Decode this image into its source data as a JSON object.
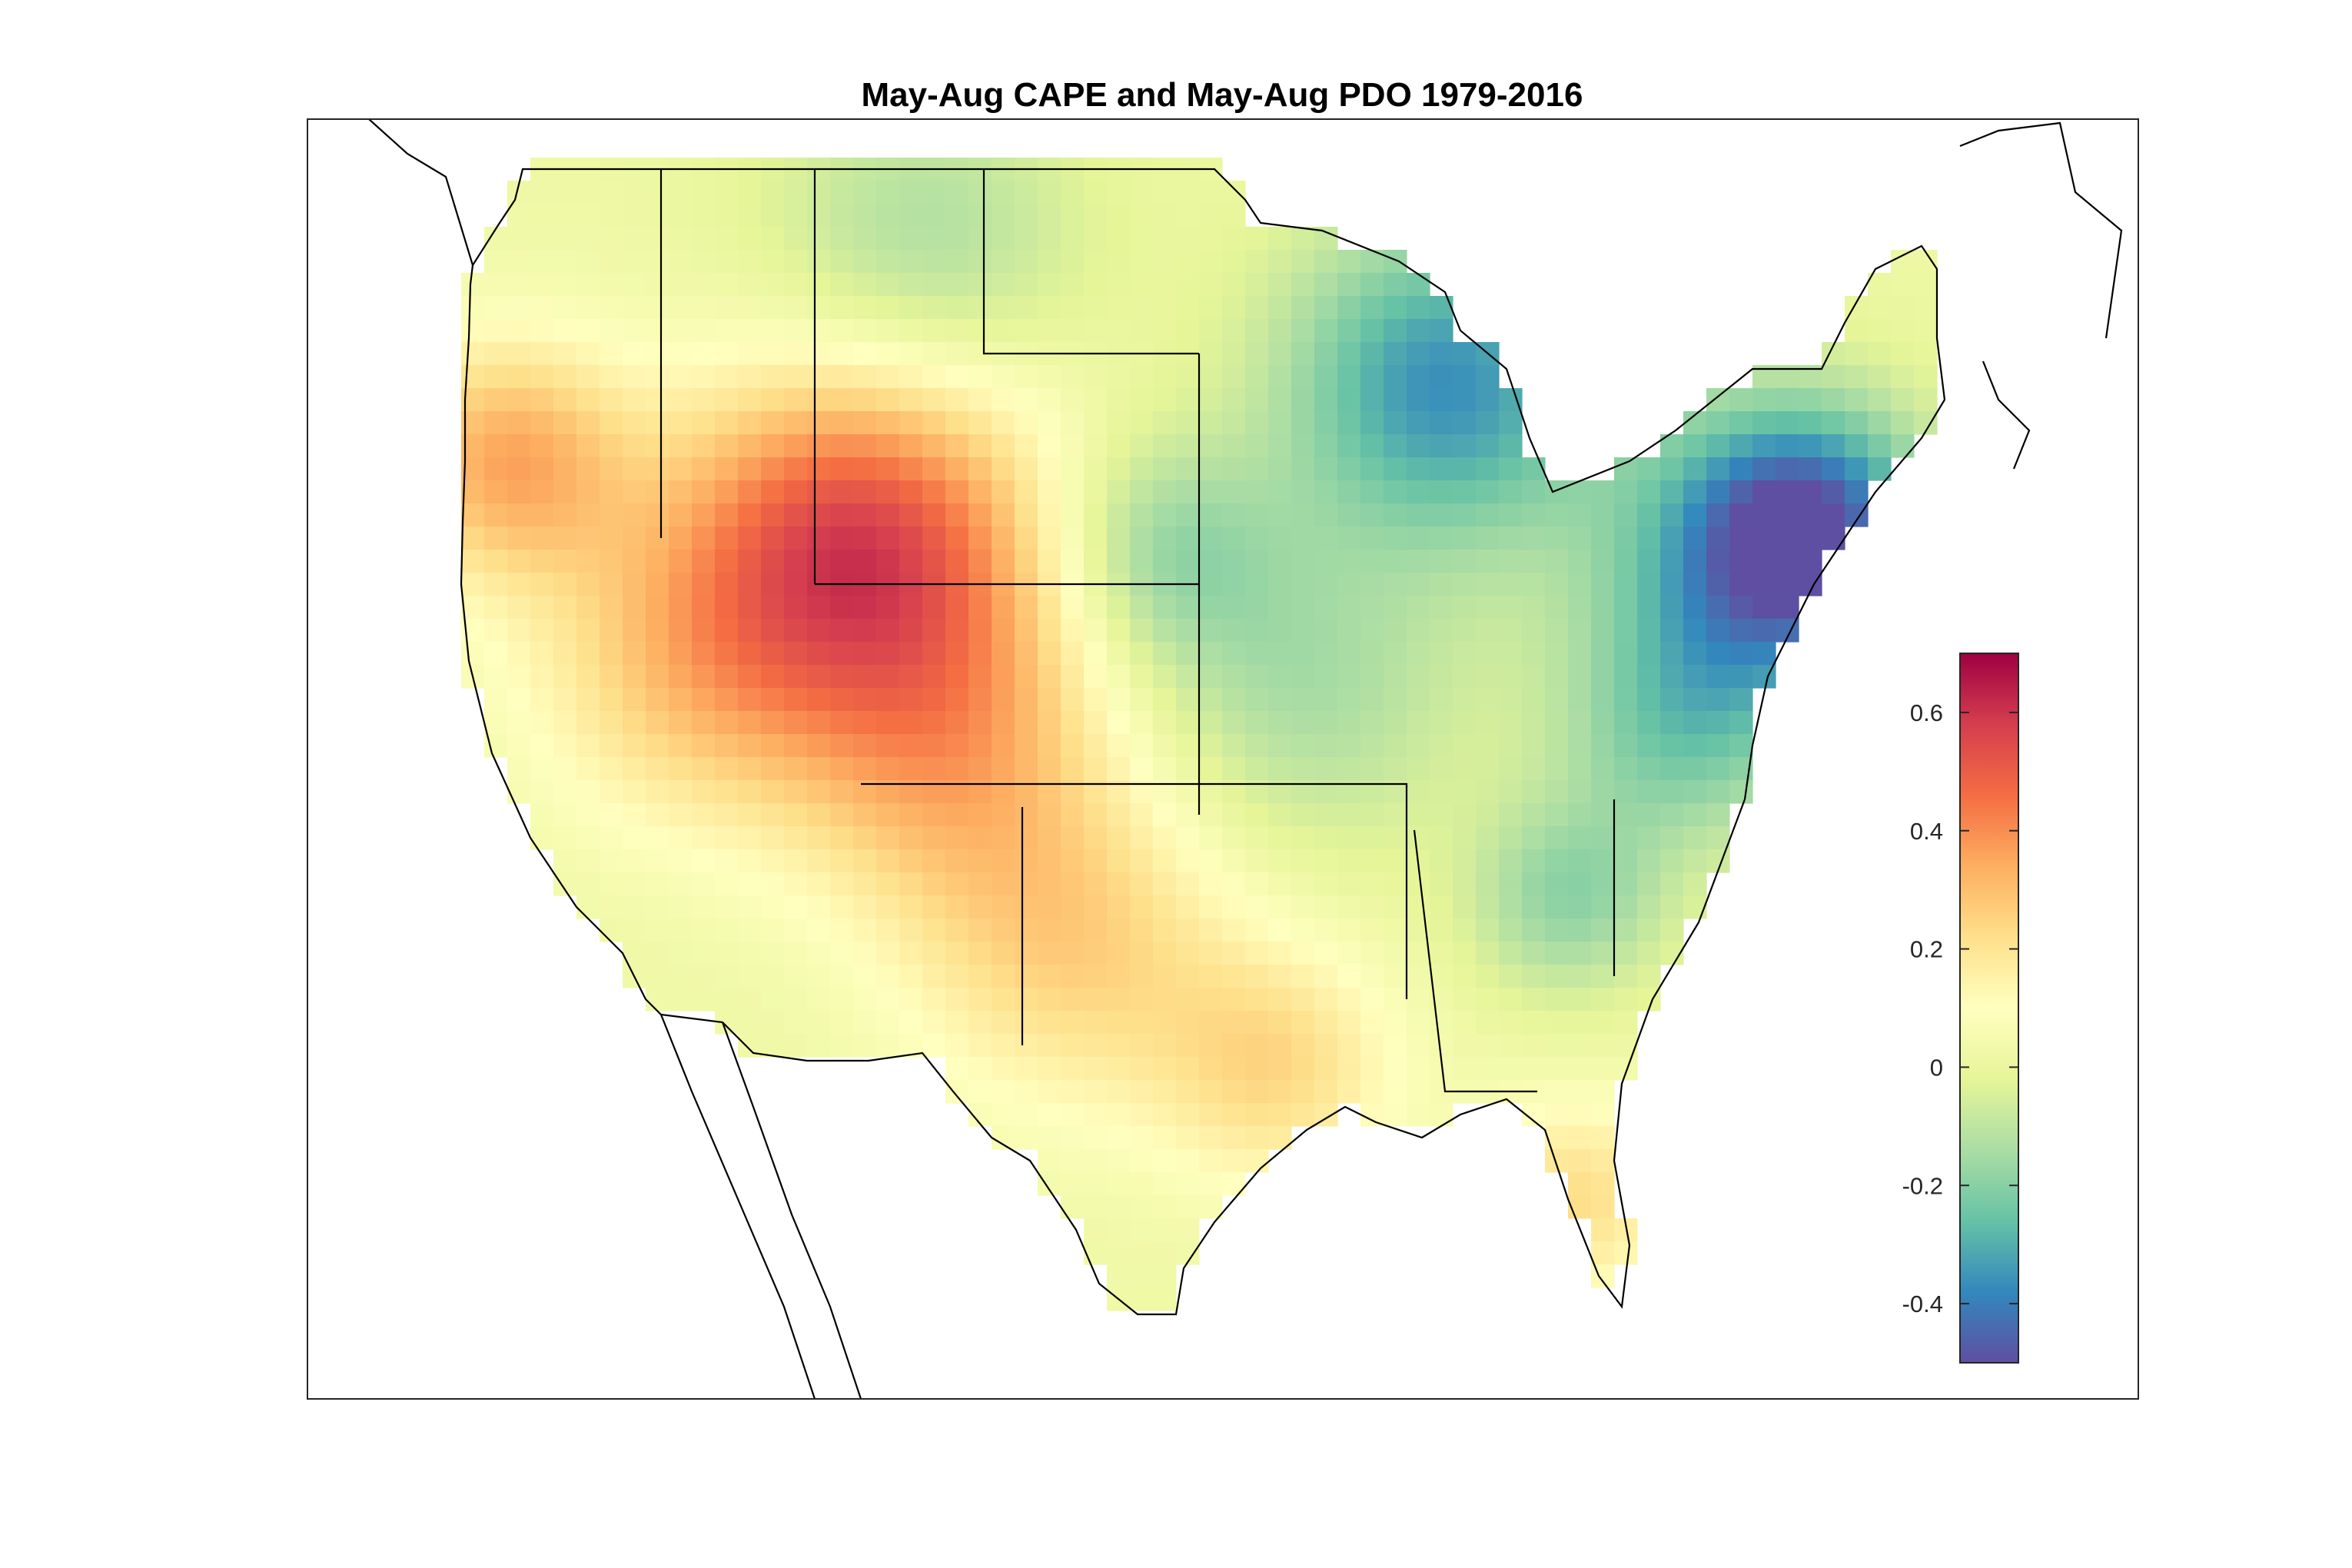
{
  "title": "May-Aug CAPE and May-Aug PDO 1979-2016",
  "colorbar": {
    "colormap": "spectral (blue-low, red-high)",
    "min": -0.5,
    "max": 0.7,
    "ticks": [
      "0.6",
      "0.4",
      "0.2",
      "0",
      "-0.2",
      "-0.4"
    ],
    "stops": [
      "#5e4fa2",
      "#3288bd",
      "#66c2a5",
      "#abdda4",
      "#e6f598",
      "#ffffbf",
      "#fee08b",
      "#fdae61",
      "#f46d43",
      "#d53e4f",
      "#9e0142"
    ]
  },
  "map": {
    "region": "Contiguous United States",
    "field": "correlation",
    "outline_color": "#000000"
  }
}
